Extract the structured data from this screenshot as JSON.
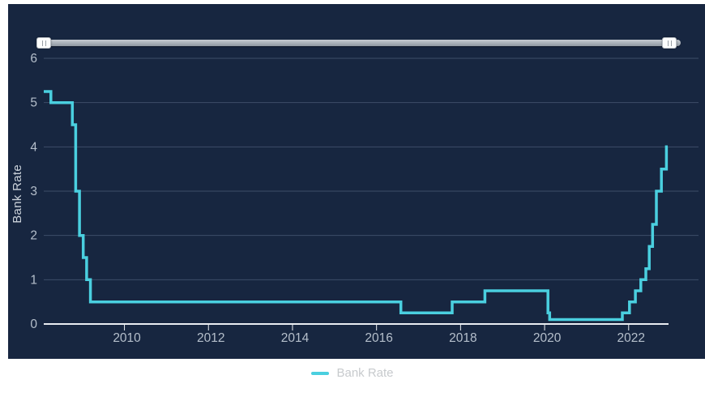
{
  "chart_data": {
    "type": "line",
    "step": "hv",
    "title": "",
    "xlabel": "",
    "ylabel": "Bank Rate",
    "xlim": [
      2008.08,
      2022.93
    ],
    "ylim": [
      0,
      6
    ],
    "x_ticks": [
      2010,
      2012,
      2014,
      2016,
      2018,
      2020,
      2022
    ],
    "y_ticks": [
      0,
      1,
      2,
      3,
      4,
      5,
      6
    ],
    "grid": "horizontal-only",
    "legend_position": "bottom",
    "series": [
      {
        "name": "Bank Rate",
        "color": "#4acfdf",
        "points": [
          [
            2008.08,
            5.25
          ],
          [
            2008.25,
            5.0
          ],
          [
            2008.76,
            4.5
          ],
          [
            2008.84,
            3.0
          ],
          [
            2008.93,
            2.0
          ],
          [
            2009.02,
            1.5
          ],
          [
            2009.1,
            1.0
          ],
          [
            2009.19,
            0.5
          ],
          [
            2016.58,
            0.25
          ],
          [
            2017.8,
            0.5
          ],
          [
            2018.58,
            0.75
          ],
          [
            2020.08,
            0.25
          ],
          [
            2020.12,
            0.1
          ],
          [
            2021.85,
            0.25
          ],
          [
            2022.02,
            0.5
          ],
          [
            2022.16,
            0.75
          ],
          [
            2022.29,
            1.0
          ],
          [
            2022.41,
            1.25
          ],
          [
            2022.49,
            1.75
          ],
          [
            2022.57,
            2.25
          ],
          [
            2022.66,
            3.0
          ],
          [
            2022.78,
            3.5
          ],
          [
            2022.9,
            4.0
          ]
        ],
        "end_x": 2022.93
      }
    ]
  },
  "legend": {
    "label": "Bank Rate"
  },
  "axes": {
    "y_title": "Bank Rate"
  },
  "colors": {
    "panel_background": "#172640",
    "series_line": "#4acfdf",
    "gridline": "#3e4e68",
    "axis_line": "#e9edf1",
    "tick_label": "#b5bfcb",
    "y_axis_title": "#ccd3db",
    "legend_text": "#c7cacd",
    "slider_track": "#a9b1ba",
    "slider_handle": "#fcfdfd"
  }
}
